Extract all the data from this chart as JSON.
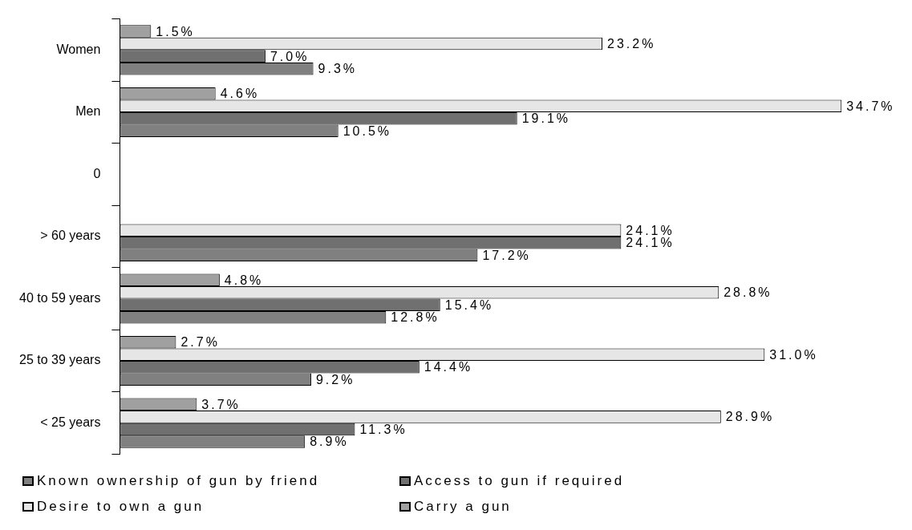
{
  "chart_data": {
    "type": "bar",
    "orientation": "horizontal",
    "categories": [
      "Women",
      "Men",
      "0",
      "> 60 years",
      "40 to 59 years",
      "25 to 39 years",
      "< 25 years"
    ],
    "series": [
      {
        "name": "Known ownership of gun by friend",
        "color": "#808080",
        "values": [
          9.3,
          10.5,
          null,
          17.2,
          12.8,
          9.2,
          8.9
        ],
        "value_labels": [
          "9.3%",
          "10.5%",
          null,
          "17.2%",
          "12.8%",
          "9.2%",
          "8.9%"
        ]
      },
      {
        "name": "Access to gun if required",
        "color": "#707070",
        "values": [
          7.0,
          19.1,
          null,
          24.1,
          15.4,
          14.4,
          11.3
        ],
        "value_labels": [
          "7.0%",
          "19.1%",
          null,
          "24.1%",
          "15.4%",
          "14.4%",
          "11.3%"
        ]
      },
      {
        "name": "Desire to own a gun",
        "color": "#e6e6e6",
        "values": [
          23.2,
          34.7,
          null,
          24.1,
          28.8,
          31.0,
          28.9
        ],
        "value_labels": [
          "23.2%",
          "34.7%",
          null,
          "24.1%",
          "28.8%",
          "31.0%",
          "28.9%"
        ]
      },
      {
        "name": "Carry a gun",
        "color": "#a0a0a0",
        "values": [
          1.5,
          4.6,
          null,
          null,
          4.8,
          2.7,
          3.7
        ],
        "value_labels": [
          "1.5%",
          "4.6%",
          null,
          null,
          "4.8%",
          "2.7%",
          "3.7%"
        ]
      }
    ],
    "legend": "bottom",
    "grid": false
  }
}
